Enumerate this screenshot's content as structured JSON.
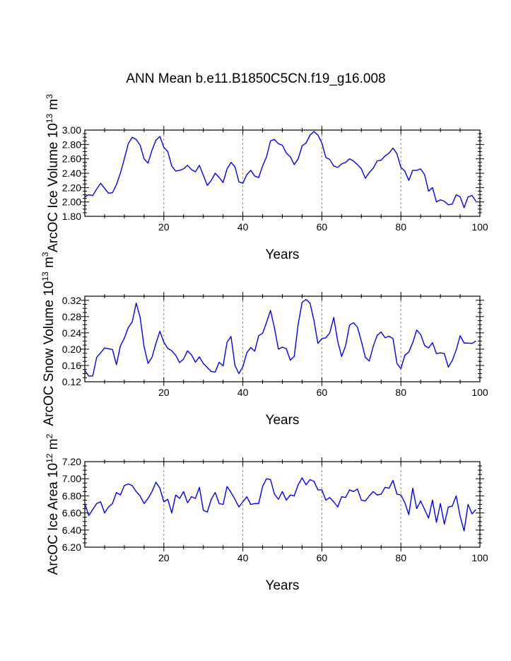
{
  "title": "ANN Mean b.e11.B1850C5CN.f19_g16.008",
  "colors": {
    "line": "#0000ff",
    "axis": "#000000",
    "refline": "#888888"
  },
  "chart_data": [
    {
      "type": "line",
      "series_name": "ArcOC Ice Volume",
      "ylabel_parts": {
        "pre": "ArcOC Ice Volume 10",
        "exp": "13",
        "unit": " m",
        "unit_exp": "3"
      },
      "xlabel": "Years",
      "xlim": [
        0,
        100
      ],
      "ylim": [
        1.8,
        3.0
      ],
      "xticks": [
        20,
        40,
        60,
        80,
        100
      ],
      "yticks": [
        "1.80",
        "2.00",
        "2.20",
        "2.40",
        "2.60",
        "2.80",
        "3.00"
      ],
      "x_minor_step": 5,
      "y_minor_step": 0.05,
      "reference_lines_x": [
        20,
        40,
        60,
        80
      ],
      "x_start": 0,
      "values": [
        2.07,
        2.1,
        2.09,
        2.18,
        2.26,
        2.19,
        2.12,
        2.13,
        2.24,
        2.4,
        2.6,
        2.81,
        2.9,
        2.87,
        2.79,
        2.6,
        2.54,
        2.72,
        2.86,
        2.91,
        2.76,
        2.7,
        2.5,
        2.43,
        2.44,
        2.46,
        2.51,
        2.45,
        2.42,
        2.51,
        2.37,
        2.23,
        2.3,
        2.4,
        2.34,
        2.27,
        2.46,
        2.55,
        2.49,
        2.28,
        2.26,
        2.38,
        2.44,
        2.36,
        2.34,
        2.5,
        2.63,
        2.85,
        2.87,
        2.81,
        2.79,
        2.68,
        2.63,
        2.52,
        2.6,
        2.78,
        2.82,
        2.93,
        2.98,
        2.93,
        2.82,
        2.62,
        2.59,
        2.5,
        2.48,
        2.53,
        2.55,
        2.6,
        2.57,
        2.52,
        2.46,
        2.33,
        2.41,
        2.47,
        2.57,
        2.58,
        2.64,
        2.68,
        2.75,
        2.67,
        2.48,
        2.43,
        2.3,
        2.44,
        2.44,
        2.46,
        2.38,
        2.15,
        2.2,
        2.0,
        2.03,
        2.01,
        1.96,
        1.97,
        2.1,
        2.07,
        1.92,
        2.07,
        2.09,
        2.01
      ]
    },
    {
      "type": "line",
      "series_name": "ArcOC Snow Volume",
      "ylabel_parts": {
        "pre": "ArcOC Snow Volume 10",
        "exp": "13",
        "unit": " m",
        "unit_exp": "3"
      },
      "xlabel": "Years",
      "xlim": [
        0,
        100
      ],
      "ylim": [
        0.12,
        0.33
      ],
      "xticks": [
        20,
        40,
        60,
        80,
        100
      ],
      "yticks": [
        "0.12",
        "0.16",
        "0.20",
        "0.24",
        "0.28",
        "0.32"
      ],
      "x_minor_step": 5,
      "y_minor_step": 0.01,
      "reference_lines_x": [
        20,
        40,
        60,
        80
      ],
      "x_start": 0,
      "values": [
        0.148,
        0.134,
        0.134,
        0.18,
        0.191,
        0.203,
        0.201,
        0.199,
        0.162,
        0.208,
        0.227,
        0.253,
        0.267,
        0.313,
        0.278,
        0.206,
        0.165,
        0.18,
        0.214,
        0.244,
        0.217,
        0.202,
        0.196,
        0.185,
        0.167,
        0.176,
        0.196,
        0.186,
        0.168,
        0.181,
        0.165,
        0.155,
        0.145,
        0.144,
        0.168,
        0.159,
        0.217,
        0.231,
        0.16,
        0.14,
        0.157,
        0.191,
        0.204,
        0.195,
        0.233,
        0.239,
        0.266,
        0.295,
        0.252,
        0.2,
        0.205,
        0.201,
        0.173,
        0.182,
        0.261,
        0.315,
        0.322,
        0.313,
        0.27,
        0.214,
        0.226,
        0.228,
        0.24,
        0.278,
        0.22,
        0.182,
        0.208,
        0.259,
        0.265,
        0.254,
        0.219,
        0.18,
        0.171,
        0.207,
        0.234,
        0.242,
        0.228,
        0.232,
        0.226,
        0.165,
        0.152,
        0.185,
        0.193,
        0.216,
        0.247,
        0.236,
        0.209,
        0.203,
        0.216,
        0.189,
        0.191,
        0.189,
        0.156,
        0.172,
        0.198,
        0.233,
        0.215,
        0.215,
        0.214,
        0.22
      ]
    },
    {
      "type": "line",
      "series_name": "ArcOC Ice Area",
      "ylabel_parts": {
        "pre": "ArcOC Ice Area 10",
        "exp": "12",
        "unit": " m",
        "unit_exp": "2"
      },
      "xlabel": "Years",
      "xlim": [
        0,
        100
      ],
      "ylim": [
        6.2,
        7.2
      ],
      "xticks": [
        20,
        40,
        60,
        80,
        100
      ],
      "yticks": [
        "6.20",
        "6.40",
        "6.60",
        "6.80",
        "7.00",
        "7.20"
      ],
      "x_minor_step": 5,
      "y_minor_step": 0.05,
      "reference_lines_x": [
        20,
        40,
        60,
        80
      ],
      "x_start": 0,
      "values": [
        6.71,
        6.57,
        6.64,
        6.71,
        6.73,
        6.6,
        6.67,
        6.71,
        6.84,
        6.81,
        6.92,
        6.94,
        6.92,
        6.85,
        6.8,
        6.71,
        6.77,
        6.85,
        6.96,
        6.89,
        6.73,
        6.76,
        6.6,
        6.81,
        6.77,
        6.85,
        6.72,
        6.79,
        6.77,
        6.9,
        6.63,
        6.61,
        6.76,
        6.84,
        6.71,
        6.7,
        6.91,
        6.84,
        6.76,
        6.67,
        6.73,
        6.79,
        6.7,
        6.71,
        6.71,
        6.91,
        7.0,
        6.99,
        6.82,
        6.76,
        6.85,
        6.75,
        6.81,
        6.8,
        6.93,
        7.01,
        6.93,
        6.99,
        6.97,
        6.87,
        6.87,
        6.75,
        6.78,
        6.73,
        6.67,
        6.79,
        6.78,
        6.87,
        6.85,
        6.88,
        6.75,
        6.74,
        6.8,
        6.85,
        6.81,
        6.82,
        6.9,
        6.89,
        6.98,
        6.82,
        6.81,
        6.72,
        6.58,
        6.89,
        6.65,
        6.74,
        6.64,
        6.54,
        6.75,
        6.49,
        6.71,
        6.47,
        6.67,
        6.68,
        6.8,
        6.56,
        6.39,
        6.7,
        6.59,
        6.64
      ]
    }
  ]
}
